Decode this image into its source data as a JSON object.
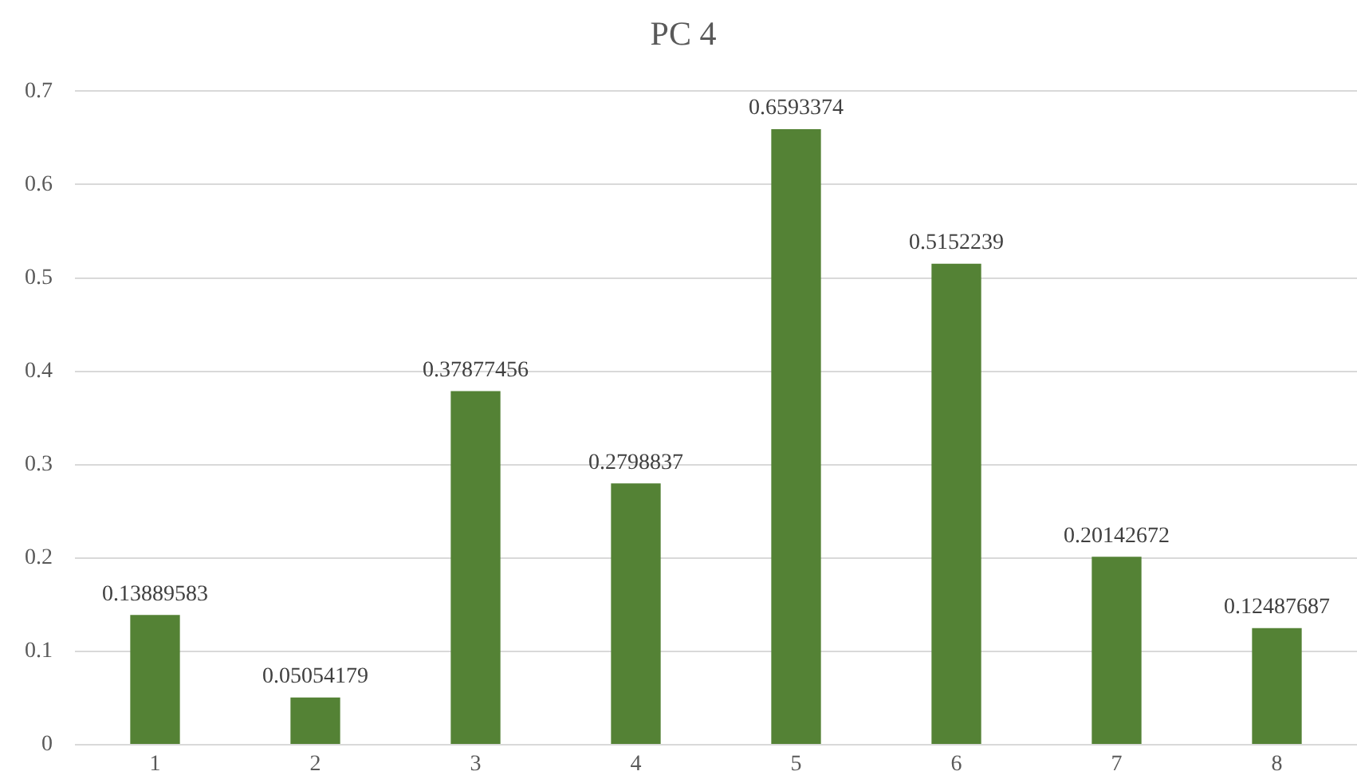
{
  "chart_data": {
    "type": "bar",
    "title": "PC 4",
    "categories": [
      "1",
      "2",
      "3",
      "4",
      "5",
      "6",
      "7",
      "8"
    ],
    "values": [
      0.13889583,
      0.05054179,
      0.37877456,
      0.2798837,
      0.6593374,
      0.5152239,
      0.20142672,
      0.12487687
    ],
    "color": "#548235",
    "ylim": [
      0,
      0.7
    ],
    "yticks": [
      0,
      0.1,
      0.2,
      0.3,
      0.4,
      0.5,
      0.6,
      0.7
    ],
    "grid": "y",
    "data_labels": true
  }
}
